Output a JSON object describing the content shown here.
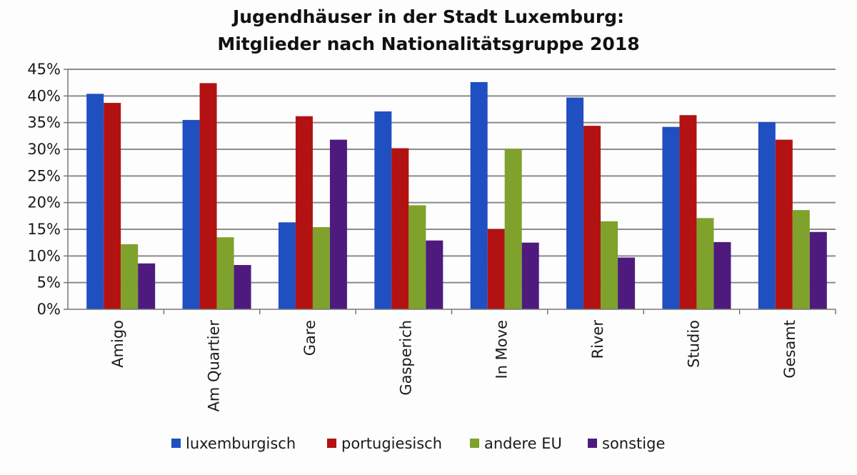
{
  "chart_data": {
    "type": "bar",
    "title": [
      "Jugendhäuser in der Stadt Luxemburg:",
      "Mitglieder nach Nationalitätsgruppe 2018"
    ],
    "xlabel": "",
    "ylabel": "",
    "ylim": [
      0,
      45
    ],
    "yticks": [
      0,
      5,
      10,
      15,
      20,
      25,
      30,
      35,
      40,
      45
    ],
    "ytick_labels": [
      "0%",
      "5%",
      "10%",
      "15%",
      "20%",
      "25%",
      "30%",
      "35%",
      "40%",
      "45%"
    ],
    "grid": true,
    "legend_position": "bottom",
    "categories": [
      "Amigo",
      "Am Quartier",
      "Gare",
      "Gasperich",
      "In Move",
      "River",
      "Studio",
      "Gesamt"
    ],
    "series": [
      {
        "name": "luxemburgisch",
        "color": "#1f4fc0",
        "values": [
          40.4,
          35.5,
          16.3,
          37.1,
          42.6,
          39.7,
          34.2,
          35.1
        ]
      },
      {
        "name": "portugiesisch",
        "color": "#b31212",
        "values": [
          38.7,
          42.4,
          36.2,
          30.2,
          15.0,
          34.4,
          36.4,
          31.8
        ]
      },
      {
        "name": "andere EU",
        "color": "#7fa22c",
        "values": [
          12.2,
          13.5,
          15.4,
          19.5,
          30.1,
          16.5,
          17.1,
          18.6
        ]
      },
      {
        "name": "sonstige",
        "color": "#4f1a7e",
        "values": [
          8.6,
          8.3,
          31.8,
          12.9,
          12.5,
          9.7,
          12.6,
          14.5
        ]
      }
    ]
  }
}
